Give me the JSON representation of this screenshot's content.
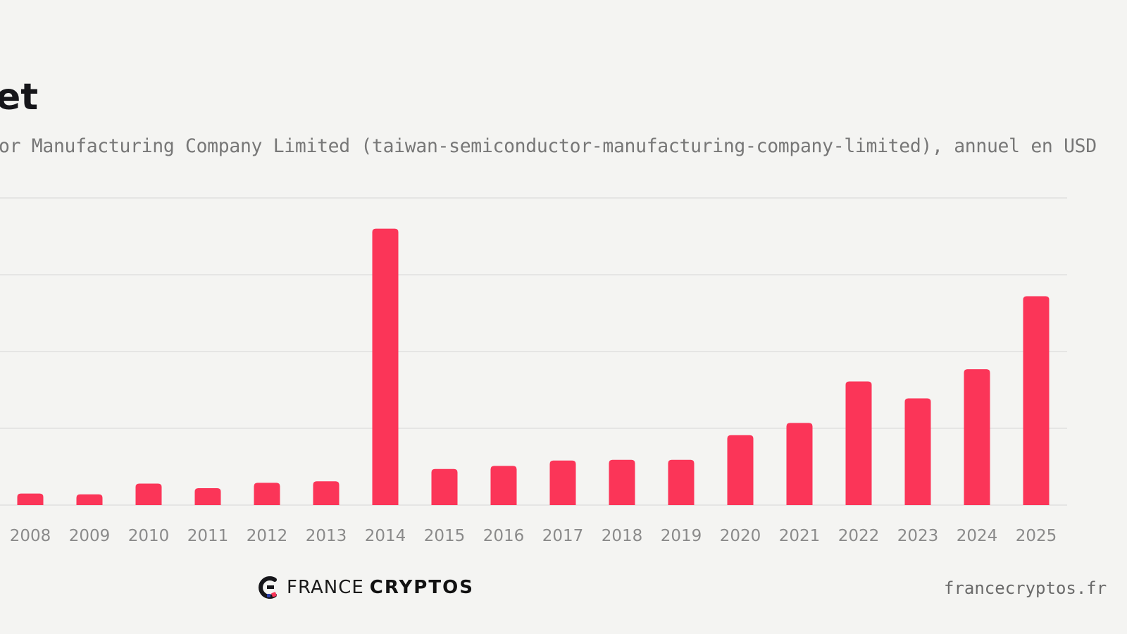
{
  "header": {
    "title": "et",
    "subtitle": "or Manufacturing Company Limited (taiwan-semiconductor-manufacturing-company-limited), annuel en USD"
  },
  "footer": {
    "logo_light": "FRANCE",
    "logo_bold": "CRYPTOS",
    "url": "francecryptos.fr"
  },
  "colors": {
    "bar": "#fb3558",
    "grid": "#dcdcdc",
    "tick": "#8a8a8a",
    "background": "#f4f4f2"
  },
  "chart_data": {
    "type": "bar",
    "categories": [
      "2008",
      "2009",
      "2010",
      "2011",
      "2012",
      "2013",
      "2014",
      "2015",
      "2016",
      "2017",
      "2018",
      "2019",
      "2020",
      "2021",
      "2022",
      "2023",
      "2024",
      "2025"
    ],
    "values": [
      0.15,
      0.14,
      0.28,
      0.22,
      0.29,
      0.31,
      3.6,
      0.47,
      0.51,
      0.58,
      0.59,
      0.59,
      0.91,
      1.07,
      1.61,
      1.39,
      1.77,
      2.72
    ],
    "ylim": [
      0,
      4
    ],
    "grid": true,
    "title": "",
    "xlabel": "",
    "ylabel": ""
  }
}
